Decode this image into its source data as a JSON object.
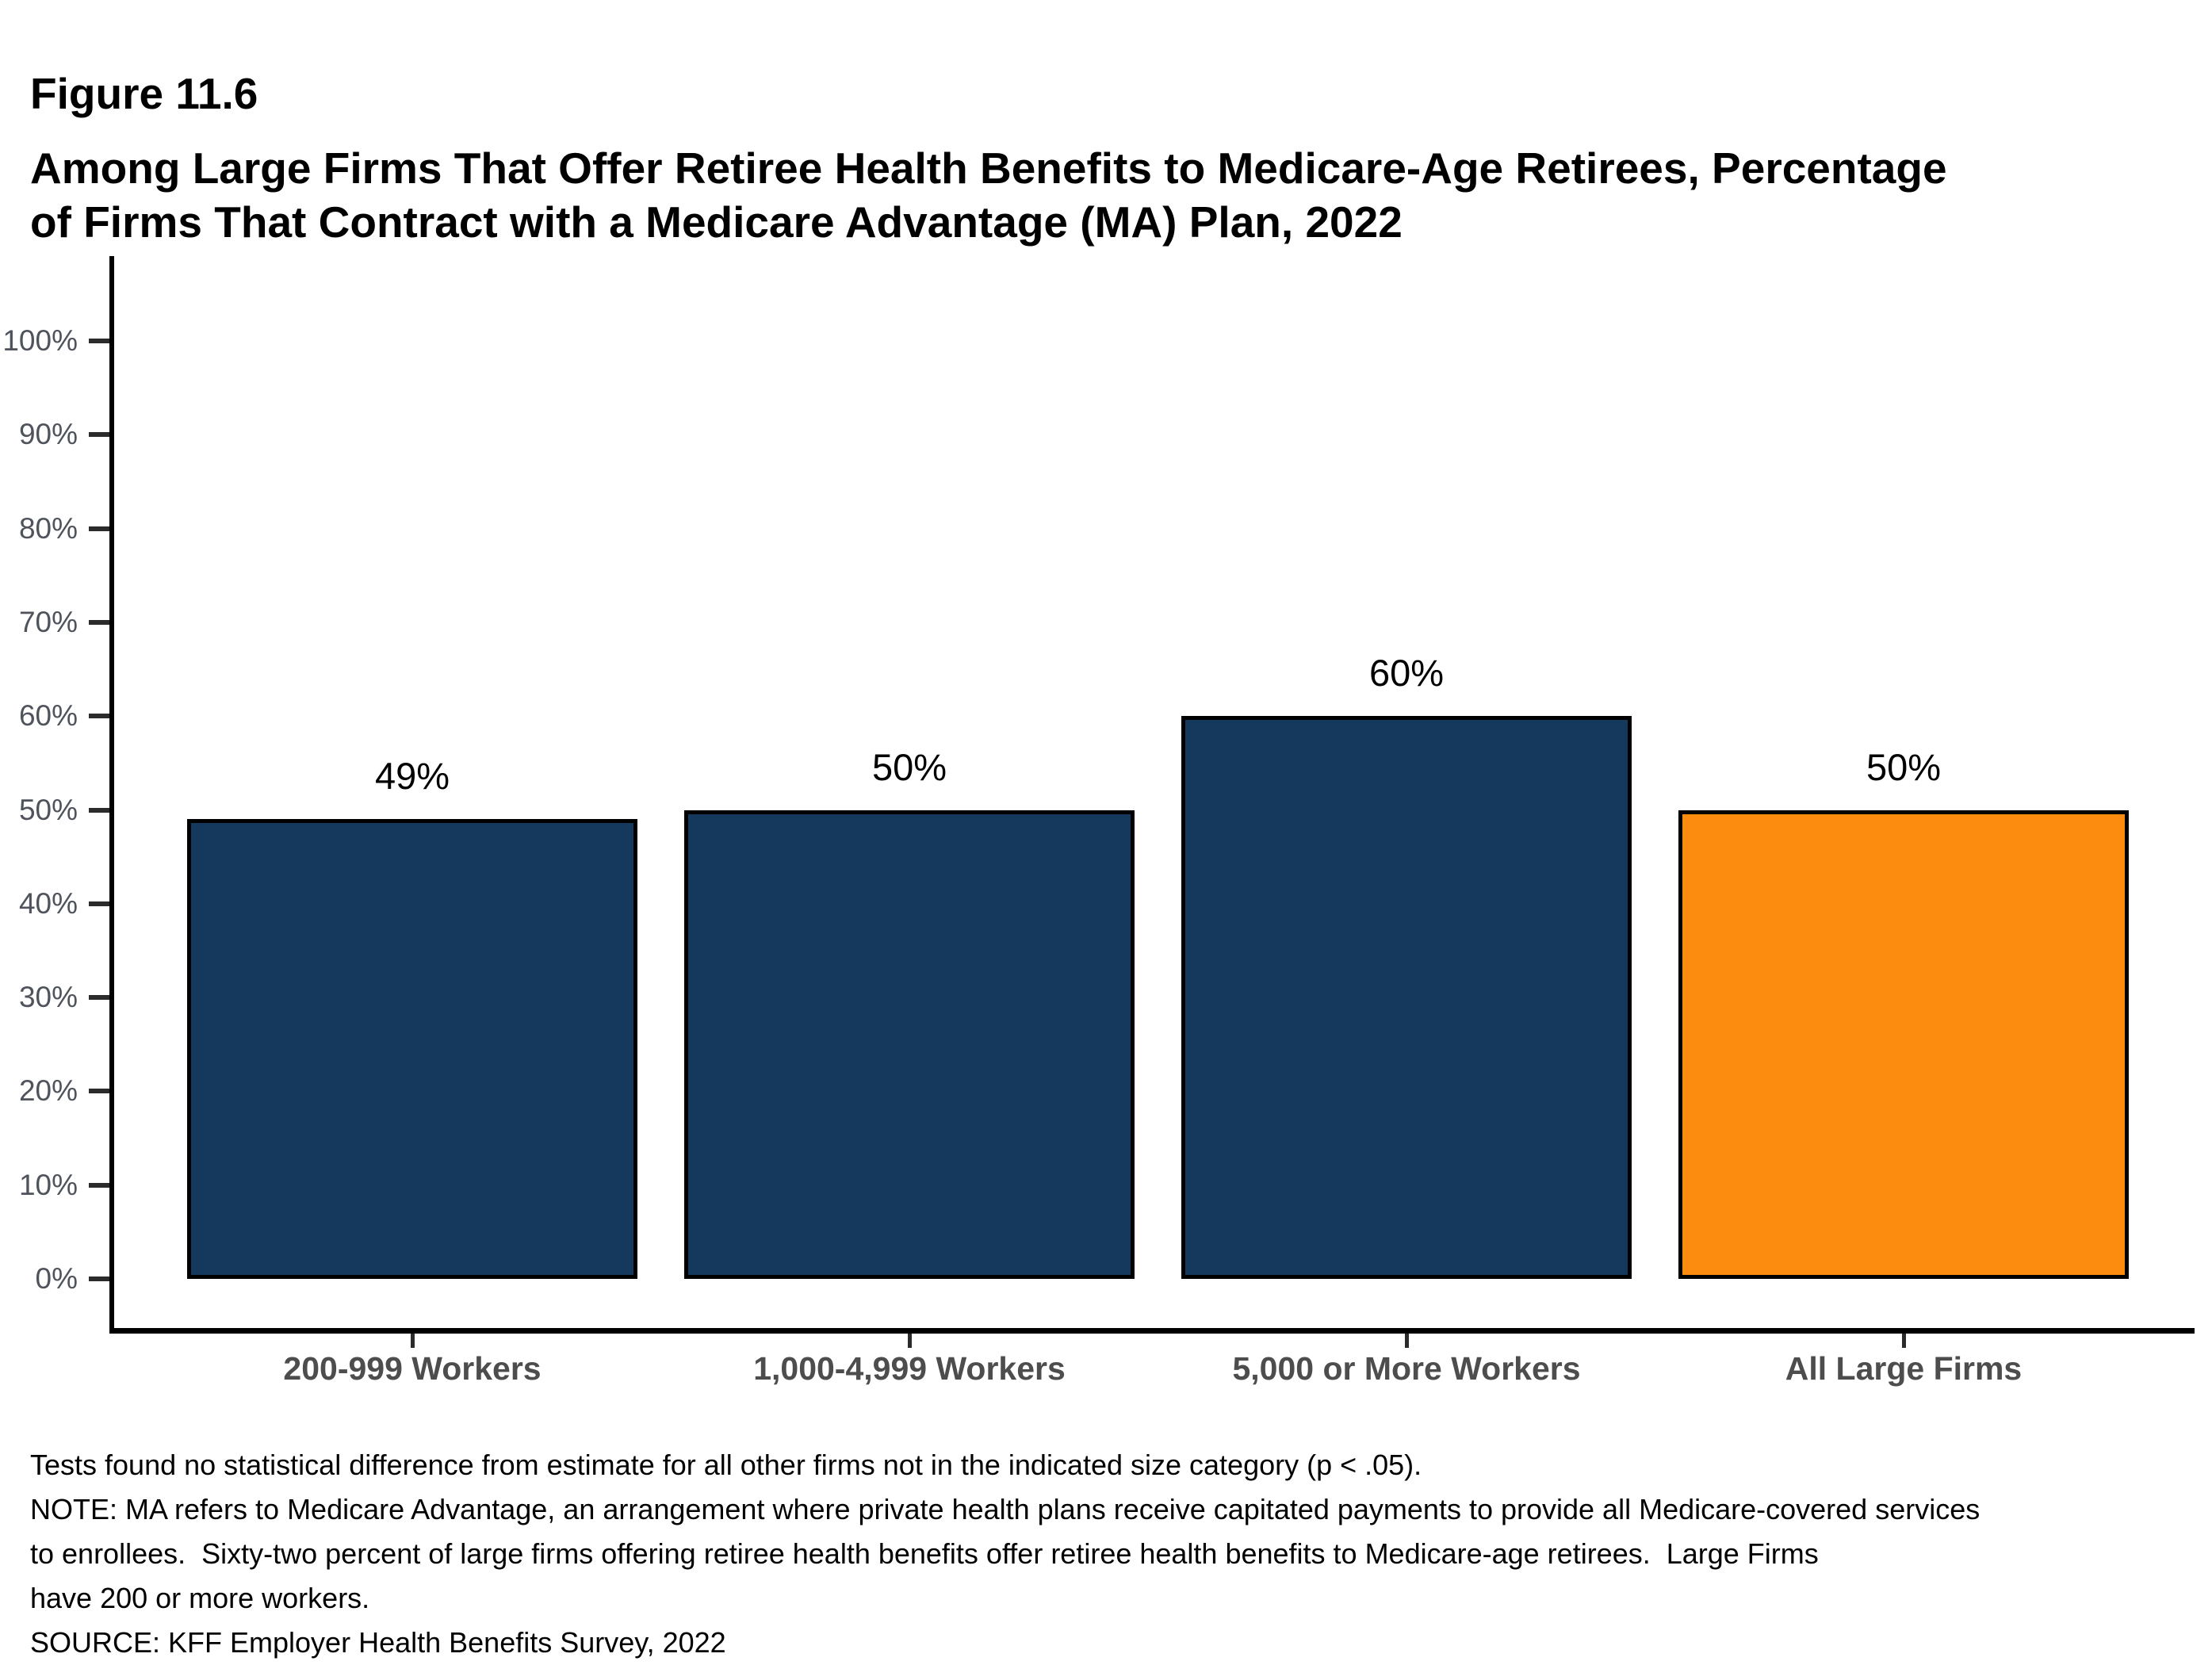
{
  "figure": {
    "label": "Figure 11.6",
    "title_line1": "Among Large Firms That Offer Retiree Health Benefits to Medicare-Age Retirees, Percentage",
    "title_line2": "of Firms That Contract with a Medicare Advantage (MA) Plan, 2022"
  },
  "chart_data": {
    "type": "bar",
    "title": "Among Large Firms That Offer Retiree Health Benefits to Medicare-Age Retirees, Percentage of Firms That Contract with a Medicare Advantage (MA) Plan, 2022",
    "categories": [
      "200-999 Workers",
      "1,000-4,999 Workers",
      "5,000 or More Workers",
      "All Large Firms"
    ],
    "values": [
      49,
      50,
      60,
      50
    ],
    "data_labels": [
      "49%",
      "50%",
      "60%",
      "50%"
    ],
    "bar_colors": [
      "#15395C",
      "#15395C",
      "#15395C",
      "#FB8C10"
    ],
    "bar_border_color": "#000000",
    "xlabel": "",
    "ylabel": "",
    "ylim": [
      0,
      100
    ],
    "y_tick_step": 10,
    "y_tick_labels": [
      "0%",
      "10%",
      "20%",
      "30%",
      "40%",
      "50%",
      "60%",
      "70%",
      "80%",
      "90%",
      "100%"
    ],
    "grid": false,
    "legend_position": "none"
  },
  "colors": {
    "navy": "#15395C",
    "orange": "#FB8C10",
    "axis": "#000000",
    "y_tick_label": "#4e535c",
    "x_tick_label": "#4d4d4d"
  },
  "notes": {
    "lines": [
      "Tests found no statistical difference from estimate for all other firms not in the indicated size category (p < .05).",
      "NOTE: MA refers to Medicare Advantage, an arrangement where private health plans receive capitated payments to provide all Medicare-covered services",
      "to enrollees.  Sixty-two percent of large firms offering retiree health benefits offer retiree health benefits to Medicare-age retirees.  Large Firms",
      "have 200 or more workers.",
      "SOURCE: KFF Employer Health Benefits Survey, 2022"
    ]
  }
}
